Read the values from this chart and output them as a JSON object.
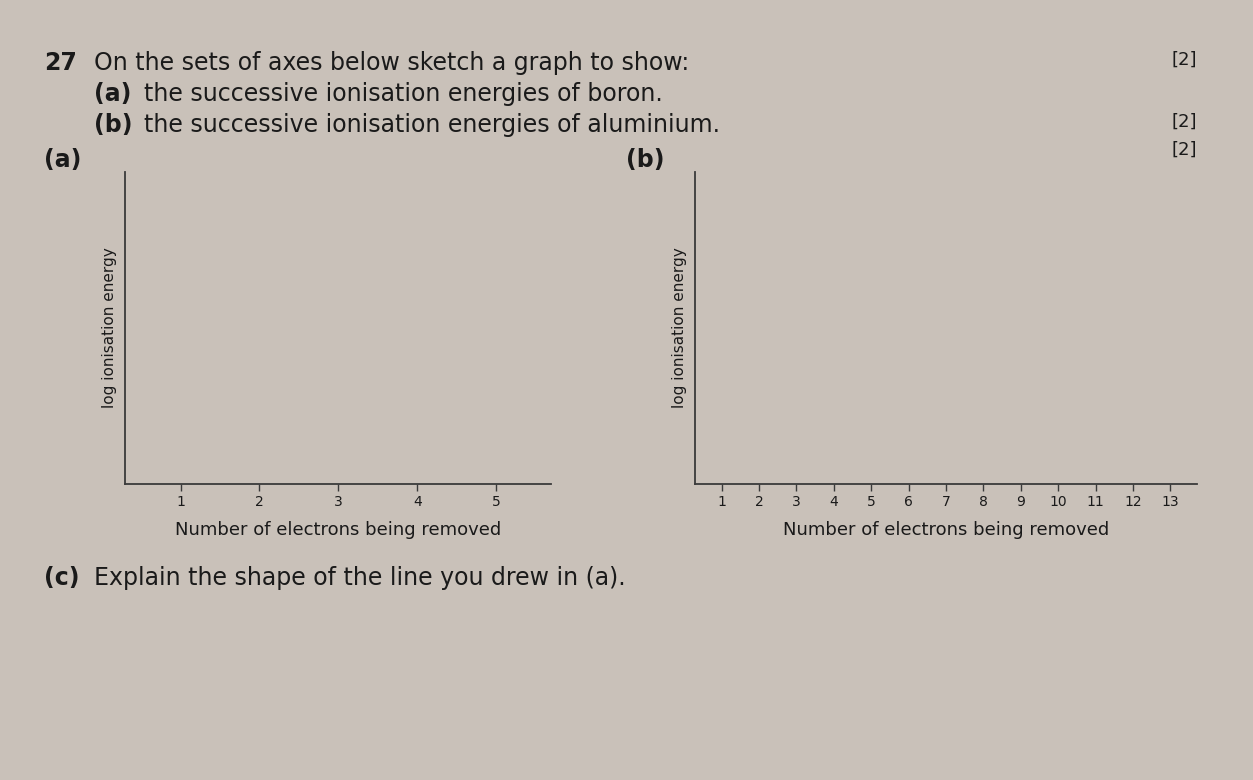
{
  "background_color": "#c9c1b9",
  "question_number": "27",
  "question_text": "On the sets of axes below sketch a graph to show:",
  "part_a_text": "the successive ionisation energies of boron.",
  "part_b_text": "the successive ionisation energies of aluminium.",
  "marks_top": "[2]",
  "marks_b": "[2]",
  "marks_b2": "[2]",
  "part_a_label": "(a)",
  "part_b_label": "(b)",
  "ylabel_a": "log ionisation energy",
  "ylabel_b": "log ionisation energy",
  "xlabel_a": "Number of electrons being removed",
  "xlabel_b": "Number of electrons being removed",
  "xticks_a": [
    1,
    2,
    3,
    4,
    5
  ],
  "xtick_labels_a": [
    "1",
    "2",
    "3",
    "4",
    "5"
  ],
  "xticks_b": [
    1,
    2,
    3,
    4,
    5,
    6,
    7,
    8,
    9,
    10,
    11,
    12,
    13
  ],
  "xtick_labels_b": [
    "1",
    "2",
    "3",
    "4",
    "5",
    "6",
    "7",
    "8",
    "9",
    "10",
    "11",
    "12",
    "13"
  ],
  "part_c_text": "Explain the shape of the line you drew in (a).",
  "part_c_label": "(c)",
  "axis_color": "#3a3a3a",
  "text_color": "#1a1a1a",
  "line_color": "#888888",
  "font_size_q": 17,
  "font_size_parts": 17,
  "font_size_label": 13,
  "font_size_ylabel": 11,
  "font_size_tick": 10,
  "font_size_c": 17
}
